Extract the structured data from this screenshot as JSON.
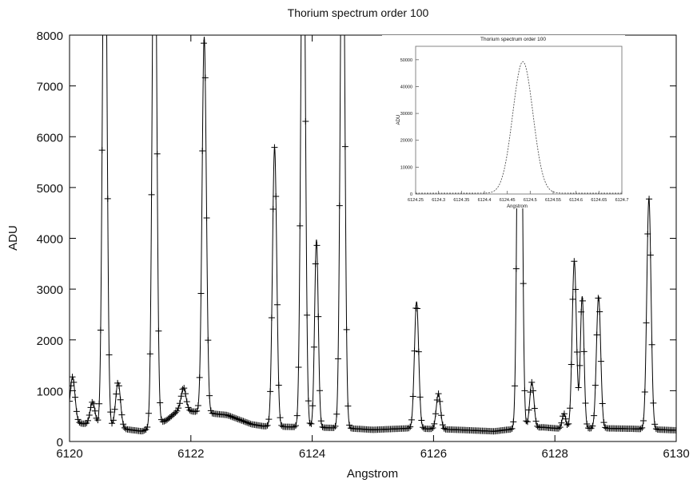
{
  "chart_data": [
    {
      "type": "line",
      "title": "Thorium spectrum order 100",
      "xlabel": "Angstrom",
      "ylabel": "ADU",
      "xlim": [
        6120,
        6130
      ],
      "ylim": [
        0,
        8000
      ],
      "xticks": [
        6120,
        6122,
        6124,
        6126,
        6128,
        6130
      ],
      "yticks": [
        0,
        1000,
        2000,
        3000,
        4000,
        5000,
        6000,
        7000,
        8000
      ],
      "grid": false,
      "marker": "+",
      "color": "#000000",
      "baseline": [
        [
          6120.0,
          380
        ],
        [
          6120.6,
          300
        ],
        [
          6121.0,
          230
        ],
        [
          6121.2,
          200
        ],
        [
          6121.6,
          420
        ],
        [
          6121.8,
          620
        ],
        [
          6122.6,
          520
        ],
        [
          6123.0,
          340
        ],
        [
          6123.2,
          300
        ],
        [
          6124.6,
          260
        ],
        [
          6125.0,
          230
        ],
        [
          6125.4,
          250
        ],
        [
          6125.6,
          260
        ],
        [
          6126.4,
          230
        ],
        [
          6127.0,
          200
        ],
        [
          6127.2,
          230
        ],
        [
          6127.8,
          280
        ],
        [
          6128.1,
          250
        ],
        [
          6128.8,
          260
        ],
        [
          6129.3,
          250
        ],
        [
          6129.8,
          230
        ],
        [
          6130.0,
          220
        ]
      ],
      "peaks": [
        {
          "x": 6120.05,
          "h": 900,
          "w": 0.04
        },
        {
          "x": 6120.38,
          "h": 450,
          "w": 0.04
        },
        {
          "x": 6120.58,
          "h": 12000,
          "w": 0.035
        },
        {
          "x": 6120.8,
          "h": 900,
          "w": 0.04
        },
        {
          "x": 6121.4,
          "h": 12000,
          "w": 0.035
        },
        {
          "x": 6121.88,
          "h": 450,
          "w": 0.04
        },
        {
          "x": 6122.22,
          "h": 7400,
          "w": 0.035
        },
        {
          "x": 6123.38,
          "h": 5500,
          "w": 0.035
        },
        {
          "x": 6123.85,
          "h": 12000,
          "w": 0.035
        },
        {
          "x": 6124.07,
          "h": 3700,
          "w": 0.03
        },
        {
          "x": 6124.5,
          "h": 12000,
          "w": 0.035
        },
        {
          "x": 6125.72,
          "h": 2500,
          "w": 0.035
        },
        {
          "x": 6126.08,
          "h": 700,
          "w": 0.035
        },
        {
          "x": 6127.42,
          "h": 12000,
          "w": 0.035
        },
        {
          "x": 6127.62,
          "h": 900,
          "w": 0.035
        },
        {
          "x": 6128.15,
          "h": 300,
          "w": 0.03
        },
        {
          "x": 6128.32,
          "h": 3300,
          "w": 0.035
        },
        {
          "x": 6128.45,
          "h": 2600,
          "w": 0.03
        },
        {
          "x": 6128.72,
          "h": 2600,
          "w": 0.035
        },
        {
          "x": 6129.55,
          "h": 4550,
          "w": 0.035
        }
      ]
    },
    {
      "type": "line",
      "title": "Thorium spectrum order 100",
      "xlabel": "Angstrom",
      "ylabel": "ADU",
      "xlim": [
        6124.25,
        6124.7
      ],
      "ylim": [
        0,
        55000
      ],
      "xticks": [
        6124.25,
        6124.3,
        6124.35,
        6124.4,
        6124.45,
        6124.5,
        6124.55,
        6124.6,
        6124.65,
        6124.7
      ],
      "yticks": [
        0,
        10000,
        20000,
        30000,
        40000,
        50000
      ],
      "grid": false,
      "color": "#555555",
      "peak": {
        "x": 6124.484,
        "h": 49000,
        "w": 0.022
      },
      "baseline": 300
    }
  ]
}
